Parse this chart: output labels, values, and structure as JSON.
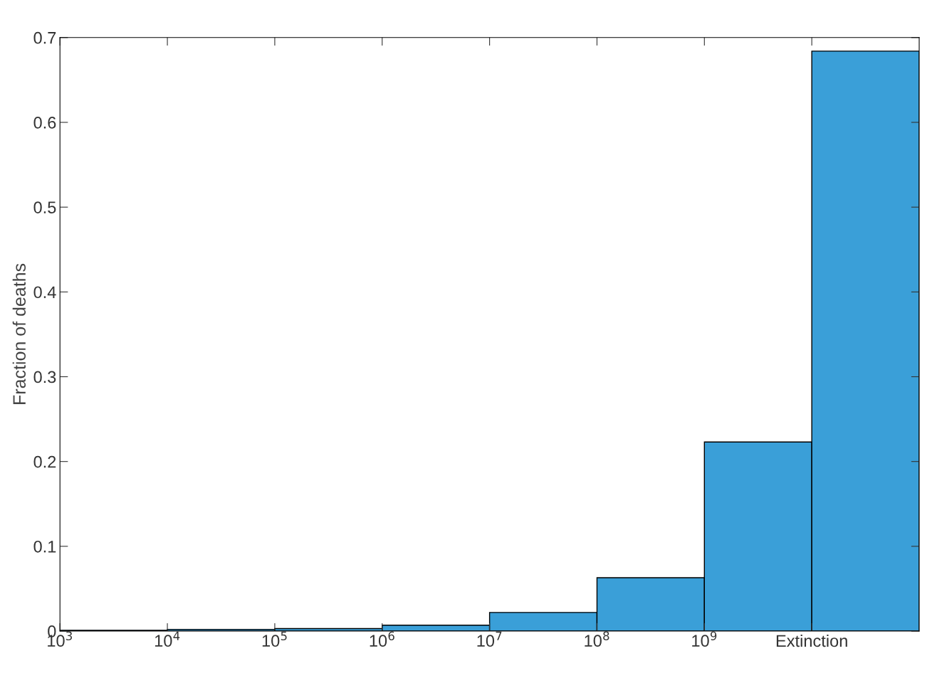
{
  "chart_data": {
    "type": "histogram",
    "ylabel": "Fraction of deaths",
    "log": "x",
    "bins": [
      1000,
      10000,
      100000,
      1000000,
      10000000,
      100000000,
      1000000000,
      10000000000,
      100000000000
    ],
    "values": [
      0.001,
      0.002,
      0.003,
      0.007,
      0.022,
      0.063,
      0.223,
      0.684
    ],
    "color": "#3a9fd8",
    "xlim": [
      1000,
      100000000000
    ],
    "xticks": [
      {
        "value": 1000,
        "label": "10$^{3}$"
      },
      {
        "value": 10000,
        "label": "10$^{4}$"
      },
      {
        "value": 100000,
        "label": "10$^{5}$"
      },
      {
        "value": 1000000,
        "label": "10$^{6}$"
      },
      {
        "value": 10000000,
        "label": "10$^{7}$"
      },
      {
        "value": 100000000,
        "label": "10$^{8}$"
      },
      {
        "value": 1000000000,
        "label": "10$^{9}$"
      },
      {
        "value": 10000000000,
        "label": "Extinction"
      }
    ],
    "ylim": [
      0,
      0.7
    ],
    "yticks": [
      0,
      0.1,
      0.2,
      0.3,
      0.4,
      0.5,
      0.6,
      0.7
    ],
    "grid": false
  }
}
